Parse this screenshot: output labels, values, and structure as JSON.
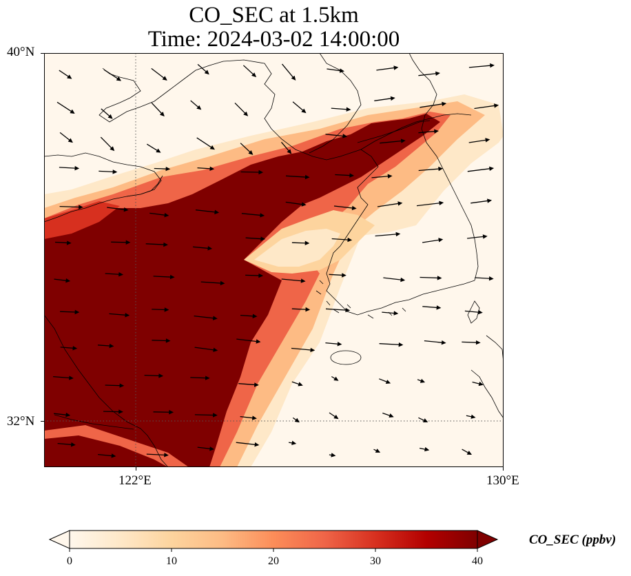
{
  "title": {
    "line1": "CO_SEC at 1.5km",
    "line2": "Time: 2024-03-02 14:00:00"
  },
  "map": {
    "extent": {
      "lon_min": 120,
      "lon_max": 130,
      "lat_min": 31,
      "lat_max": 40
    },
    "gridlines": {
      "lons": [
        122
      ],
      "lats": [
        32
      ],
      "style": "dotted"
    },
    "lat_labels": [
      "40°N",
      "32°N"
    ],
    "lon_labels": [
      "122°E",
      "130°E"
    ],
    "coastlines": true,
    "field": "CO_SEC concentration, high plume over western Yellow Sea and eastern China, narrow plume extending NE to Korean DMZ region",
    "wind_vectors": true
  },
  "colorbar": {
    "label": "CO_SEC (ppbv)",
    "ticks": [
      "0",
      "10",
      "20",
      "30",
      "40"
    ],
    "range": [
      0,
      40
    ],
    "colormap": "OrRd",
    "extend": "both",
    "colors": [
      "#fff7ec",
      "#fee8c8",
      "#fdd49e",
      "#fdbb84",
      "#fc8d59",
      "#ef6548",
      "#d7301f",
      "#b30000",
      "#7f0000"
    ]
  }
}
